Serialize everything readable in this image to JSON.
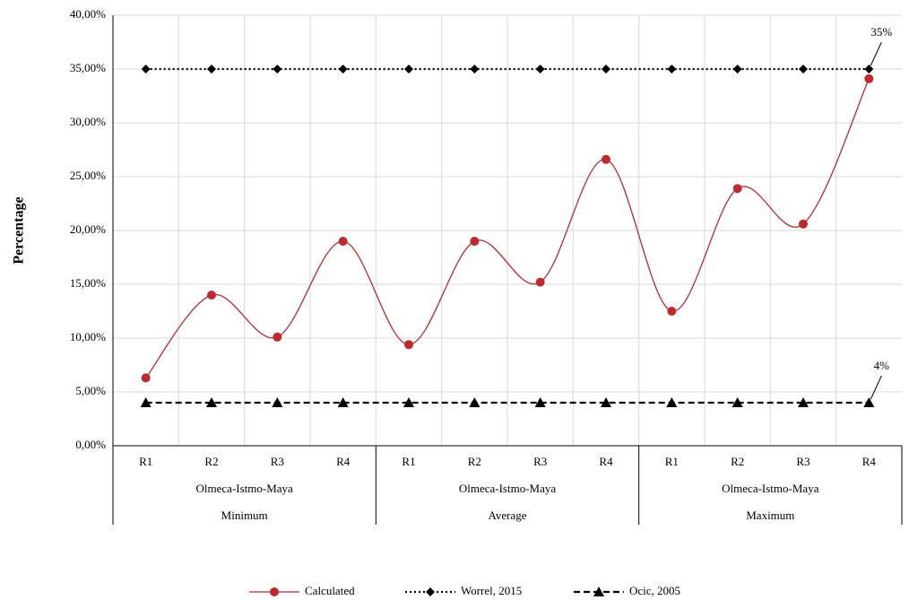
{
  "chart_data": {
    "type": "line",
    "y_label": "Percentage",
    "categories": [
      "R1",
      "R2",
      "R3",
      "R4",
      "R1",
      "R2",
      "R3",
      "R4",
      "R1",
      "R2",
      "R3",
      "R4"
    ],
    "groups": [
      {
        "name": "Olmeca-Istmo-Maya",
        "level": "Minimum"
      },
      {
        "name": "Olmeca-Istmo-Maya",
        "level": "Average"
      },
      {
        "name": "Olmeca-Istmo-Maya",
        "level": "Maximum"
      }
    ],
    "series": [
      {
        "name": "Calculated",
        "color": "#c0282d",
        "style": "solid",
        "marker": "circle",
        "smooth": true,
        "values": [
          6.3,
          14.0,
          10.1,
          19.0,
          9.4,
          19.0,
          15.2,
          26.6,
          12.5,
          23.9,
          20.6,
          34.1
        ]
      },
      {
        "name": "Worrel, 2015",
        "color": "#000000",
        "style": "dotted",
        "marker": "diamond",
        "smooth": false,
        "values": [
          35,
          35,
          35,
          35,
          35,
          35,
          35,
          35,
          35,
          35,
          35,
          35
        ]
      },
      {
        "name": "Ocic, 2005",
        "color": "#000000",
        "style": "dashed",
        "marker": "triangle",
        "smooth": false,
        "values": [
          4,
          4,
          4,
          4,
          4,
          4,
          4,
          4,
          4,
          4,
          4,
          4
        ]
      }
    ],
    "annotations": [
      {
        "text": "35%",
        "value": 35
      },
      {
        "text": "4%",
        "value": 4
      }
    ],
    "ylim": [
      0,
      40
    ],
    "yticks": [
      {
        "value": 0,
        "label": "0,00%"
      },
      {
        "value": 5,
        "label": "5,00%"
      },
      {
        "value": 10,
        "label": "10,00%"
      },
      {
        "value": 15,
        "label": "15,00%"
      },
      {
        "value": 20,
        "label": "20,00%"
      },
      {
        "value": 25,
        "label": "25,00%"
      },
      {
        "value": 30,
        "label": "30,00%"
      },
      {
        "value": 35,
        "label": "35,00%"
      },
      {
        "value": 40,
        "label": "40,00%"
      }
    ],
    "grid": true,
    "legend": "bottom"
  }
}
